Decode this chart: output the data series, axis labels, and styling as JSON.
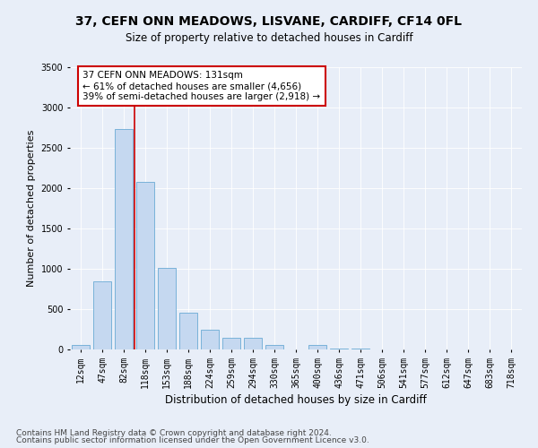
{
  "title": "37, CEFN ONN MEADOWS, LISVANE, CARDIFF, CF14 0FL",
  "subtitle": "Size of property relative to detached houses in Cardiff",
  "xlabel": "Distribution of detached houses by size in Cardiff",
  "ylabel": "Number of detached properties",
  "categories": [
    "12sqm",
    "47sqm",
    "82sqm",
    "118sqm",
    "153sqm",
    "188sqm",
    "224sqm",
    "259sqm",
    "294sqm",
    "330sqm",
    "365sqm",
    "400sqm",
    "436sqm",
    "471sqm",
    "506sqm",
    "541sqm",
    "577sqm",
    "612sqm",
    "647sqm",
    "683sqm",
    "718sqm"
  ],
  "values": [
    55,
    850,
    2730,
    2080,
    1010,
    455,
    245,
    150,
    150,
    60,
    0,
    55,
    10,
    10,
    0,
    5,
    5,
    0,
    0,
    0,
    5
  ],
  "bar_color": "#c5d8f0",
  "bar_edge_color": "#6aaad4",
  "vline_color": "#cc0000",
  "annotation_box_color": "#cc0000",
  "background_color": "#e8eef8",
  "plot_bg_color": "#e8eef8",
  "ylim": [
    0,
    3500
  ],
  "yticks": [
    0,
    500,
    1000,
    1500,
    2000,
    2500,
    3000,
    3500
  ],
  "annotation_line1": "37 CEFN ONN MEADOWS: 131sqm",
  "annotation_line2": "← 61% of detached houses are smaller (4,656)",
  "annotation_line3": "39% of semi-detached houses are larger (2,918) →",
  "footer_line1": "Contains HM Land Registry data © Crown copyright and database right 2024.",
  "footer_line2": "Contains public sector information licensed under the Open Government Licence v3.0.",
  "title_fontsize": 10,
  "subtitle_fontsize": 8.5,
  "xlabel_fontsize": 8.5,
  "ylabel_fontsize": 8,
  "tick_fontsize": 7,
  "annotation_fontsize": 7.5,
  "footer_fontsize": 6.5
}
